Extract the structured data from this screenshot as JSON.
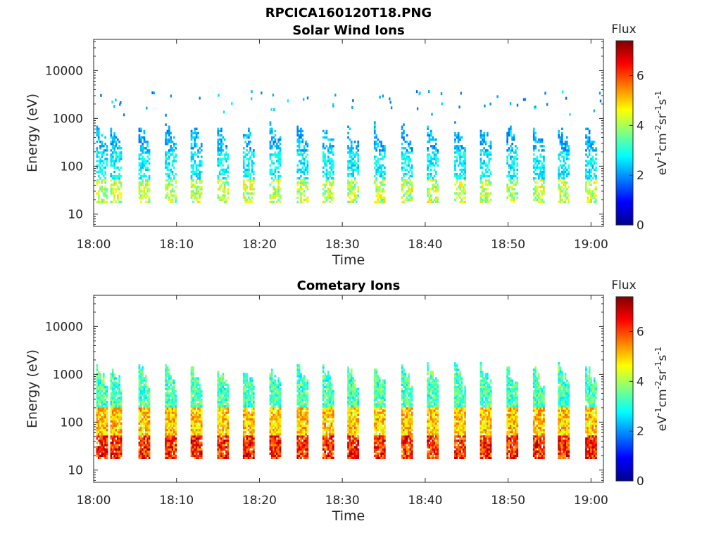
{
  "figure_title": "RPCICA160120T18.PNG",
  "chart_data": [
    {
      "type": "heatmap",
      "title": "Solar Wind Ions",
      "xlabel": "Time",
      "ylabel": "Energy (eV)",
      "x_ticks": [
        "18:00",
        "18:10",
        "18:20",
        "18:30",
        "18:40",
        "18:50",
        "19:00"
      ],
      "x_range_minutes": [
        0,
        61.5
      ],
      "y_ticks": [
        "10",
        "100",
        "1000",
        "10000"
      ],
      "y_scale": "log",
      "y_range": [
        5.5,
        45000
      ],
      "colorbar": {
        "title": "Flux",
        "label": "eV-1cm-2sr-1s-1",
        "range": [
          0,
          7.4
        ],
        "ticks": [
          "0",
          "2",
          "4",
          "6"
        ],
        "colormap": "jet"
      },
      "grid": false,
      "sweep_minutes": [
        0.3,
        2.0,
        5.4,
        8.6,
        11.7,
        14.9,
        18.0,
        21.2,
        24.5,
        27.6,
        30.6,
        33.8,
        37.1,
        40.2,
        43.5,
        46.6,
        49.8,
        53.0,
        56.0,
        59.3
      ],
      "intensity": "low",
      "max_flux": 5.5
    },
    {
      "type": "heatmap",
      "title": "Cometary Ions",
      "xlabel": "Time",
      "ylabel": "Energy (eV)",
      "x_ticks": [
        "18:00",
        "18:10",
        "18:20",
        "18:30",
        "18:40",
        "18:50",
        "19:00"
      ],
      "x_range_minutes": [
        0,
        61.5
      ],
      "y_ticks": [
        "10",
        "100",
        "1000",
        "10000"
      ],
      "y_scale": "log",
      "y_range": [
        5.5,
        45000
      ],
      "colorbar": {
        "title": "Flux",
        "label": "eV-1cm-2sr-1s-1",
        "range": [
          0,
          7.4
        ],
        "ticks": [
          "0",
          "2",
          "4",
          "6"
        ],
        "colormap": "jet"
      },
      "grid": false,
      "sweep_minutes": [
        0.3,
        2.0,
        5.4,
        8.6,
        11.7,
        14.9,
        18.0,
        21.2,
        24.5,
        27.6,
        30.6,
        33.8,
        37.1,
        40.2,
        43.5,
        46.6,
        49.8,
        53.0,
        56.0,
        59.3
      ],
      "intensity": "high",
      "max_flux": 7.2
    }
  ]
}
